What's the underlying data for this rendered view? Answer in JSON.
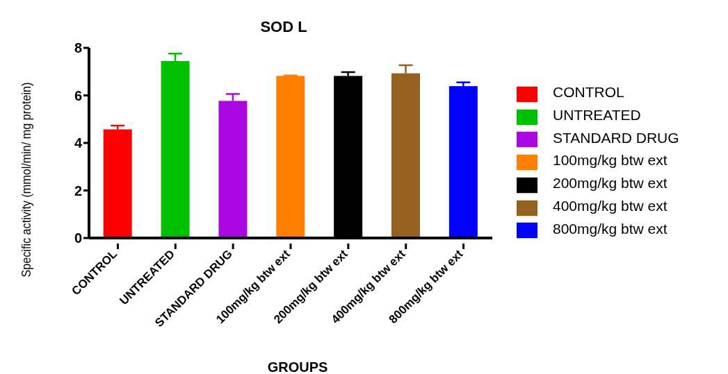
{
  "chart_data": {
    "type": "bar",
    "title": "SOD L",
    "xlabel": "GROUPS",
    "ylabel": "Specific activity (mmol/min/ mg protein)",
    "categories": [
      "CONTROL",
      "UNTREATED",
      "STANDARD DRUG",
      "100mg/kg btw ext",
      "200mg/kg btw ext",
      "400mg/kg btw ext",
      "800mg/kg btw ext"
    ],
    "series": [
      {
        "name": "CONTROL",
        "color": "#ff0000",
        "values": [
          4.57,
          null,
          null,
          null,
          null,
          null,
          null
        ],
        "errors": [
          0.16,
          null,
          null,
          null,
          null,
          null,
          null
        ]
      },
      {
        "name": "UNTREATED",
        "color": "#00c000",
        "values": [
          null,
          7.45,
          null,
          null,
          null,
          null,
          null
        ],
        "errors": [
          null,
          0.31,
          null,
          null,
          null,
          null,
          null
        ]
      },
      {
        "name": "STANDARD DRUG",
        "color": "#aa08e0",
        "values": [
          null,
          null,
          5.77,
          null,
          null,
          null,
          null
        ],
        "errors": [
          null,
          null,
          0.29,
          null,
          null,
          null,
          null
        ]
      },
      {
        "name": "100mg/kg btw ext",
        "color": "#ff8000",
        "values": [
          null,
          null,
          null,
          6.82,
          null,
          null,
          null
        ],
        "errors": [
          null,
          null,
          null,
          0.02,
          null,
          null,
          null
        ]
      },
      {
        "name": "200mg/kg btw ext",
        "color": "#000000",
        "values": [
          null,
          null,
          null,
          null,
          6.82,
          null,
          null
        ],
        "errors": [
          null,
          null,
          null,
          null,
          0.16,
          null,
          null
        ]
      },
      {
        "name": "400mg/kg btw ext",
        "color": "#956120",
        "values": [
          null,
          null,
          null,
          null,
          null,
          6.93,
          null
        ],
        "errors": [
          null,
          null,
          null,
          null,
          null,
          0.34,
          null
        ]
      },
      {
        "name": "800mg/kg btw ext",
        "color": "#0000ff",
        "values": [
          null,
          null,
          null,
          null,
          null,
          null,
          6.39
        ],
        "errors": [
          null,
          null,
          null,
          null,
          null,
          null,
          0.16
        ]
      }
    ],
    "ylim": [
      0,
      8
    ],
    "yticks": [
      0,
      2,
      4,
      6,
      8
    ],
    "grid": false,
    "legend": "right"
  }
}
